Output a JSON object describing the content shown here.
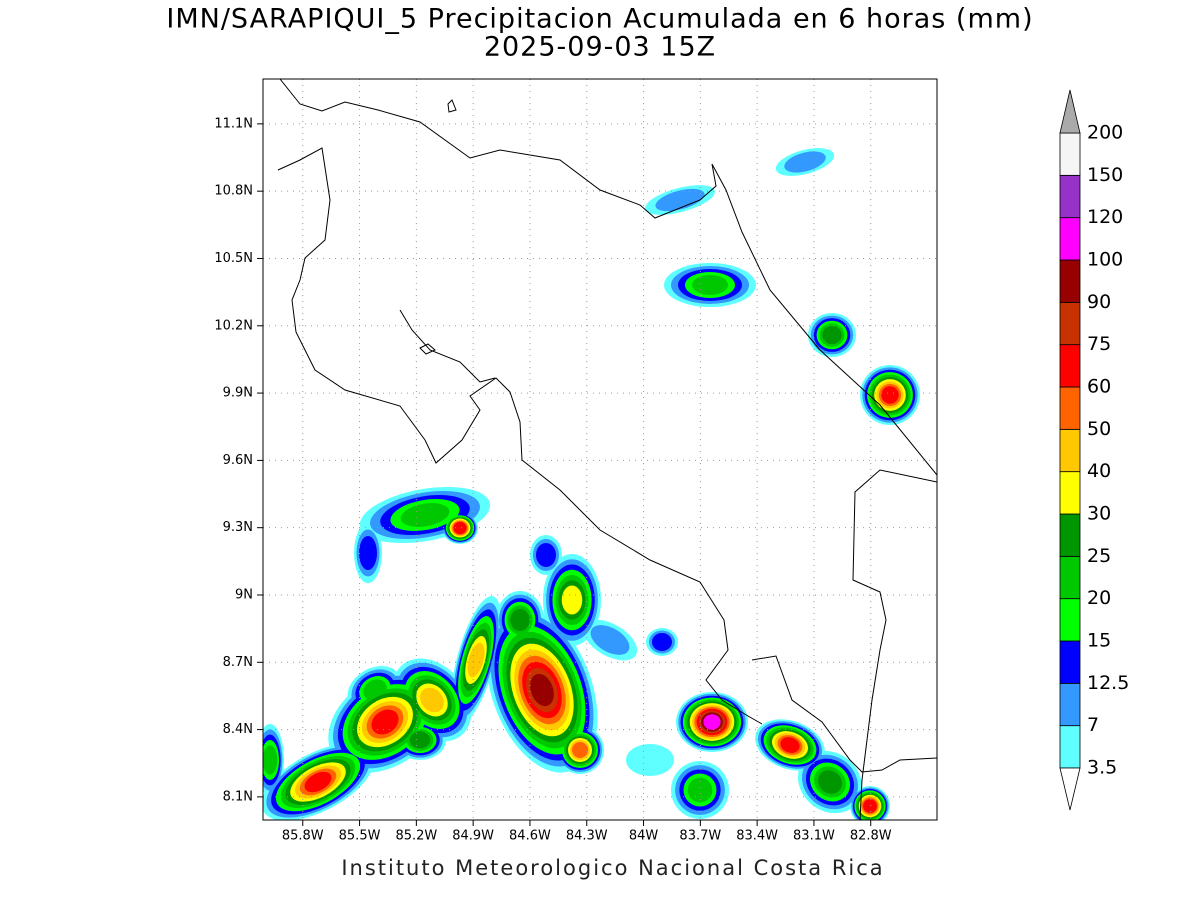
{
  "header": {
    "title": "IMN/SARAPIQUI_5 Precipitacion Acumulada en 6 horas (mm)",
    "subtitle": "2025-09-03 15Z"
  },
  "map": {
    "lon_range": [
      -86.01,
      -82.45
    ],
    "lat_range": [
      7.997,
      11.3
    ],
    "lon_ticks": [
      {
        "value": -85.8,
        "label": "85.8W"
      },
      {
        "value": -85.5,
        "label": "85.5W"
      },
      {
        "value": -85.2,
        "label": "85.2W"
      },
      {
        "value": -84.9,
        "label": "84.9W"
      },
      {
        "value": -84.6,
        "label": "84.6W"
      },
      {
        "value": -84.3,
        "label": "84.3W"
      },
      {
        "value": -84,
        "label": "84W"
      },
      {
        "value": -83.7,
        "label": "83.7W"
      },
      {
        "value": -83.4,
        "label": "83.4W"
      },
      {
        "value": -83.1,
        "label": "83.1W"
      },
      {
        "value": -82.8,
        "label": "82.8W"
      }
    ],
    "lat_ticks": [
      {
        "value": 8.1,
        "label": "8.1N"
      },
      {
        "value": 8.4,
        "label": "8.4N"
      },
      {
        "value": 8.7,
        "label": "8.7N"
      },
      {
        "value": 9,
        "label": "9N"
      },
      {
        "value": 9.3,
        "label": "9.3N"
      },
      {
        "value": 9.6,
        "label": "9.6N"
      },
      {
        "value": 9.9,
        "label": "9.9N"
      },
      {
        "value": 10.2,
        "label": "10.2N"
      },
      {
        "value": 10.5,
        "label": "10.5N"
      },
      {
        "value": 10.8,
        "label": "10.8N"
      },
      {
        "value": 11.1,
        "label": "11.1N"
      }
    ],
    "grid": true
  },
  "colorbar": {
    "levels": [
      3.5,
      7,
      12.5,
      15,
      20,
      25,
      30,
      40,
      50,
      60,
      75,
      90,
      100,
      120,
      150,
      200
    ],
    "colors": [
      "#60ffff",
      "#3399ff",
      "#0000ff",
      "#00ff00",
      "#00c800",
      "#009600",
      "#ffff00",
      "#ffc800",
      "#ff6400",
      "#ff0000",
      "#c83200",
      "#960000",
      "#ff00ff",
      "#9632c8",
      "#f5f5f5"
    ],
    "under_color": "#ffffff",
    "over_color": "#aaaaaa"
  },
  "footer": "Instituto Meteorologico Nacional Costa Rica"
}
